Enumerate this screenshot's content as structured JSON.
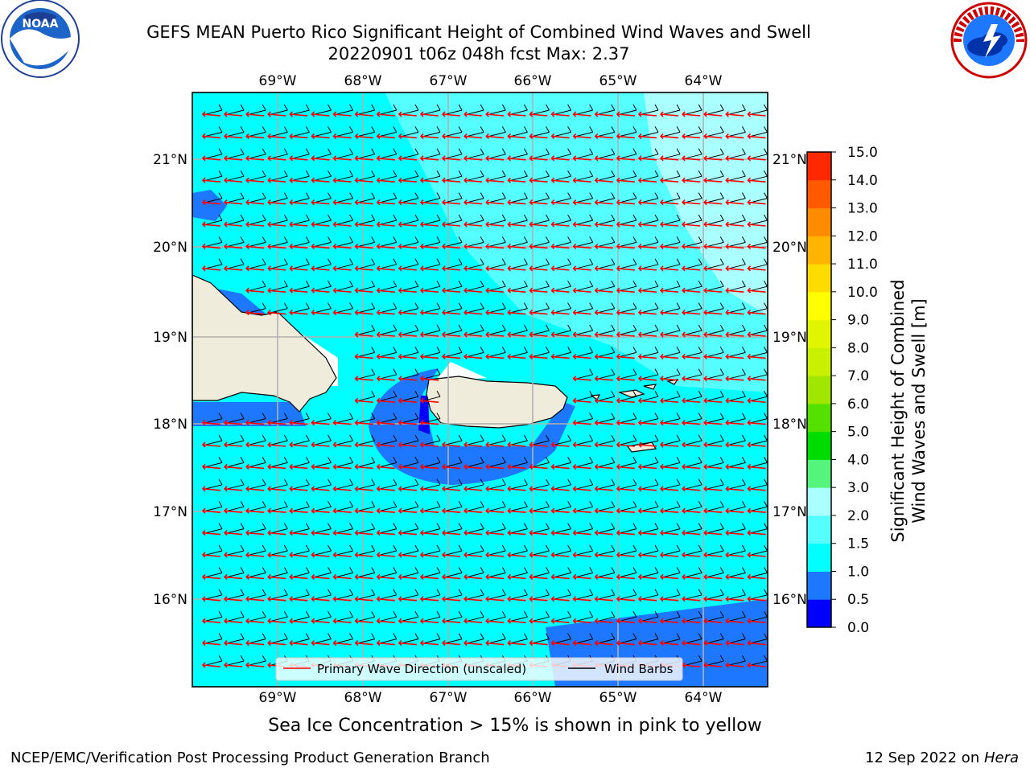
{
  "header": {
    "title_line1": "GEFS MEAN Puerto Rico Significant Height of Combined Wind Waves and Swell",
    "title_line2": "20220901 t06z 048h fcst   Max: 2.37"
  },
  "logos": {
    "left": {
      "name": "noaa-logo",
      "text": "NOAA"
    },
    "right": {
      "name": "nws-logo",
      "text": "NATIONAL WEATHER SERVICE"
    }
  },
  "map": {
    "lon_labels": [
      "69°W",
      "68°W",
      "67°W",
      "66°W",
      "65°W",
      "64°W"
    ],
    "lat_labels": [
      "21°N",
      "20°N",
      "19°N",
      "18°N",
      "17°N",
      "16°N"
    ],
    "colors": {
      "ocean_1_1_5": "#00ffff",
      "ocean_1_5_2": "#55ffff",
      "ocean_2_3": "#aaffff",
      "ocean_0_5_1": "#1e78ff",
      "ocean_0_0_5": "#0000ff",
      "land": "#efecdb",
      "wave_arrow": "#ff0000",
      "wind_barb": "#000000"
    },
    "legend": {
      "wave_direction": "Primary Wave Direction (unscaled)",
      "wind_barbs": "Wind Barbs"
    }
  },
  "colorbar": {
    "label_line1": "Significant Height of Combined",
    "label_line2": "Wind Waves and Swell [m]",
    "ticks": [
      "0.0",
      "0.5",
      "1.0",
      "1.5",
      "2.0",
      "3.0",
      "4.0",
      "5.0",
      "6.0",
      "7.0",
      "8.0",
      "9.0",
      "10.0",
      "11.0",
      "12.0",
      "13.0",
      "14.0",
      "15.0"
    ],
    "colors": [
      "#0000ff",
      "#1e78ff",
      "#00ffff",
      "#55ffff",
      "#aaffff",
      "#55f57d",
      "#00dc00",
      "#55e100",
      "#a0e600",
      "#c8f000",
      "#e1f500",
      "#ffff00",
      "#ffdc00",
      "#ffb400",
      "#ff8c00",
      "#ff5a00",
      "#ff2800",
      "#ff0000"
    ]
  },
  "caption": "Sea Ice Concentration > 15% is shown in pink to yellow",
  "footer": {
    "left": "NCEP/EMC/Verification Post Processing Product Generation Branch",
    "right_prefix": "12 Sep 2022 on ",
    "right_host": "Hera"
  }
}
